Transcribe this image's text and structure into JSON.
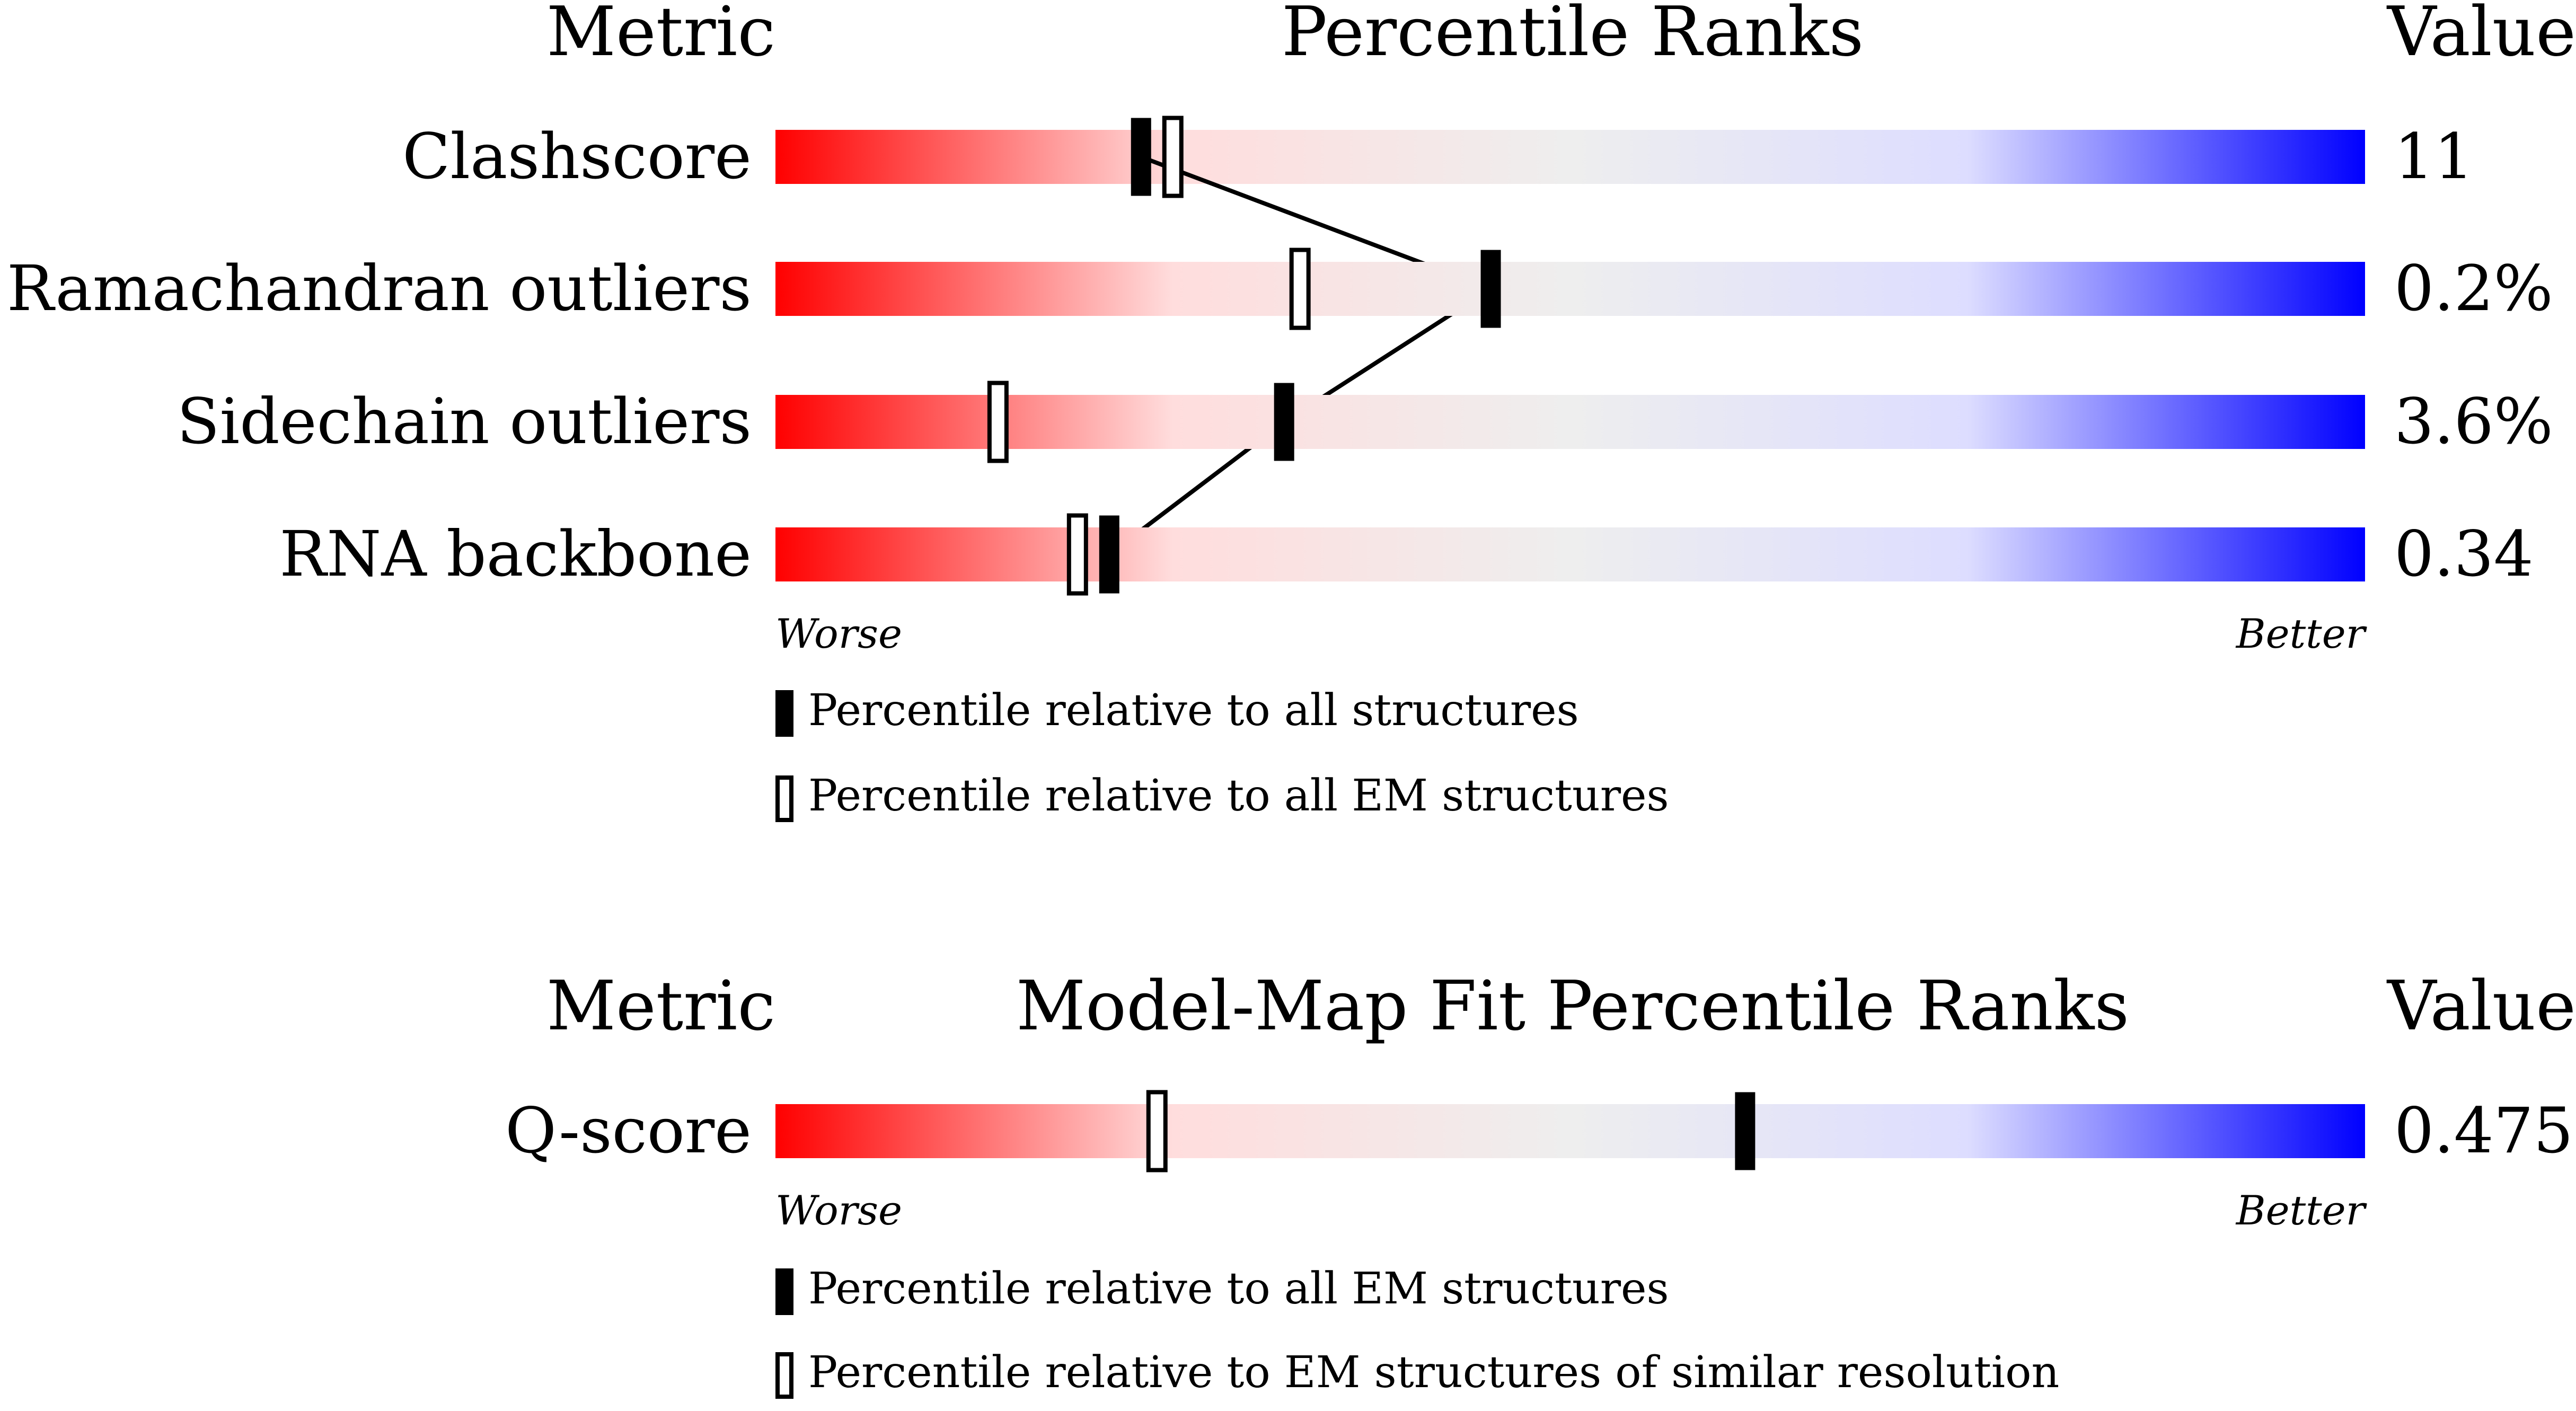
{
  "colors": {
    "bar_gradient": [
      "#ff0000",
      "#ffdddd",
      "#eeeeee",
      "#ddddff",
      "#0000ff"
    ],
    "marker_all": "#000000",
    "marker_em": "#ffffff",
    "connector": "#000000"
  },
  "chart_data": [
    {
      "type": "percentile_ranks",
      "headers": {
        "metric": "Metric",
        "title": "Percentile Ranks",
        "value": "Value"
      },
      "rows": [
        {
          "metric": "Clashscore",
          "value": "11",
          "percentile_all": 23,
          "percentile_em": 25
        },
        {
          "metric": "Ramachandran outliers",
          "value": "0.2%",
          "percentile_all": 45,
          "percentile_em": 33
        },
        {
          "metric": "Sidechain outliers",
          "value": "3.6%",
          "percentile_all": 32,
          "percentile_em": 14
        },
        {
          "metric": "RNA backbone",
          "value": "0.34",
          "percentile_all": 21,
          "percentile_em": 19
        }
      ],
      "connect_series": "percentile_all",
      "scale": {
        "min": 0,
        "max": 100,
        "worse_label": "Worse",
        "better_label": "Better"
      },
      "legend": [
        {
          "marker": "filled",
          "label": "Percentile relative to all structures"
        },
        {
          "marker": "hollow",
          "label": "Percentile relative to all EM structures"
        }
      ]
    },
    {
      "type": "percentile_ranks",
      "headers": {
        "metric": "Metric",
        "title": "Model-Map Fit Percentile Ranks",
        "value": "Value"
      },
      "rows": [
        {
          "metric": "Q-score",
          "value": "0.475",
          "percentile_all": 61,
          "percentile_em": 24
        }
      ],
      "connect_series": null,
      "scale": {
        "min": 0,
        "max": 100,
        "worse_label": "Worse",
        "better_label": "Better"
      },
      "legend": [
        {
          "marker": "filled",
          "label": "Percentile relative to all EM structures"
        },
        {
          "marker": "hollow",
          "label": "Percentile relative to EM structures of similar resolution"
        }
      ]
    }
  ]
}
